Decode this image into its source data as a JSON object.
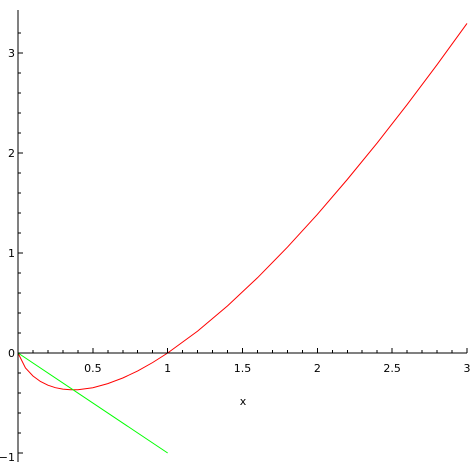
{
  "chart_data": {
    "type": "line",
    "title": "",
    "xlabel": "x",
    "ylabel": "",
    "xlim": [
      0,
      3
    ],
    "ylim": [
      -1,
      3.3
    ],
    "grid": false,
    "x_ticks": [
      {
        "value": 0.5,
        "label": "0.5"
      },
      {
        "value": 1,
        "label": "1"
      },
      {
        "value": 1.5,
        "label": "1.5"
      },
      {
        "value": 2,
        "label": "2"
      },
      {
        "value": 2.5,
        "label": "2.5"
      },
      {
        "value": 3,
        "label": "3"
      }
    ],
    "y_ticks": [
      {
        "value": -1,
        "label": "−1"
      },
      {
        "value": 0,
        "label": "0"
      },
      {
        "value": 1,
        "label": "1"
      },
      {
        "value": 2,
        "label": "2"
      },
      {
        "value": 3,
        "label": "3"
      }
    ],
    "series": [
      {
        "color": "#ff0000",
        "x": [
          0,
          0.05,
          0.1,
          0.15,
          0.2,
          0.25,
          0.3,
          0.35,
          0.368,
          0.4,
          0.5,
          0.6,
          0.7,
          0.8,
          0.9,
          1.0,
          1.2,
          1.4,
          1.6,
          1.8,
          2.0,
          2.2,
          2.4,
          2.6,
          2.8,
          3.0
        ],
        "y": [
          0,
          -0.15,
          -0.23,
          -0.285,
          -0.322,
          -0.347,
          -0.361,
          -0.367,
          -0.368,
          -0.367,
          -0.347,
          -0.306,
          -0.25,
          -0.179,
          -0.095,
          0,
          0.219,
          0.471,
          0.752,
          1.058,
          1.386,
          1.735,
          2.101,
          2.484,
          2.883,
          3.296
        ]
      },
      {
        "color": "#00ff00",
        "x": [
          0,
          1.0
        ],
        "y": [
          0,
          -1.0
        ]
      }
    ]
  }
}
